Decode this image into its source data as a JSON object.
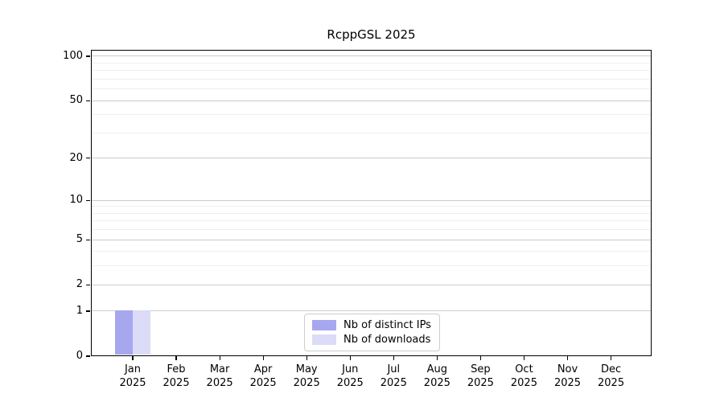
{
  "chart_data": {
    "type": "bar",
    "title": "RcppGSL 2025",
    "categories": [
      "Jan",
      "Feb",
      "Mar",
      "Apr",
      "May",
      "Jun",
      "Jul",
      "Aug",
      "Sep",
      "Oct",
      "Nov",
      "Dec"
    ],
    "xtick_year": "2025",
    "series": [
      {
        "name": "Nb of distinct IPs",
        "color": "#a7a7f0",
        "values": [
          1,
          0,
          0,
          0,
          0,
          0,
          0,
          0,
          0,
          0,
          0,
          0
        ]
      },
      {
        "name": "Nb of downloads",
        "color": "#dcdcf8",
        "values": [
          1,
          0,
          0,
          0,
          0,
          0,
          0,
          0,
          0,
          0,
          0,
          0
        ]
      }
    ],
    "yscale": "log1p",
    "ylim": [
      0,
      110.4
    ],
    "yticks": [
      {
        "value": 0,
        "label": "0"
      },
      {
        "value": 1,
        "label": "1"
      },
      {
        "value": 2,
        "label": "2"
      },
      {
        "value": 5,
        "label": "5"
      },
      {
        "value": 10,
        "label": "10"
      },
      {
        "value": 20,
        "label": "20"
      },
      {
        "value": 50,
        "label": "50"
      },
      {
        "value": 100,
        "label": "100"
      }
    ],
    "yticks_minor": [
      3,
      4,
      6,
      7,
      8,
      9,
      30,
      40,
      60,
      70,
      80,
      90
    ],
    "grid": true,
    "legend_position": "lower center",
    "colors": {
      "grid_major": "#cbcbcb",
      "grid_minor": "#efefef",
      "spine": "#000000",
      "text": "#000000",
      "legend_border": "#cccccc"
    }
  }
}
